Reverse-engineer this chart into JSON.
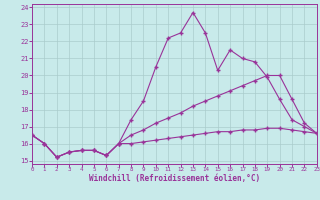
{
  "x": [
    0,
    1,
    2,
    3,
    4,
    5,
    6,
    7,
    8,
    9,
    10,
    11,
    12,
    13,
    14,
    15,
    16,
    17,
    18,
    19,
    20,
    21,
    22,
    23
  ],
  "line1": [
    16.5,
    16.0,
    15.2,
    15.5,
    15.6,
    15.6,
    15.3,
    16.0,
    17.4,
    18.5,
    20.5,
    22.2,
    22.5,
    23.7,
    22.5,
    20.3,
    21.5,
    21.0,
    20.8,
    19.9,
    18.6,
    17.4,
    17.0,
    16.6
  ],
  "line2": [
    16.5,
    16.0,
    15.2,
    15.5,
    15.6,
    15.6,
    15.3,
    16.0,
    16.5,
    16.8,
    17.2,
    17.5,
    17.8,
    18.2,
    18.5,
    18.8,
    19.1,
    19.4,
    19.7,
    20.0,
    20.0,
    18.6,
    17.2,
    16.6
  ],
  "line3": [
    16.5,
    16.0,
    15.2,
    15.5,
    15.6,
    15.6,
    15.3,
    16.0,
    16.0,
    16.1,
    16.2,
    16.3,
    16.4,
    16.5,
    16.6,
    16.7,
    16.7,
    16.8,
    16.8,
    16.9,
    16.9,
    16.8,
    16.7,
    16.6
  ],
  "line_color": "#993399",
  "bg_color": "#c8eaea",
  "grid_color": "#aacccc",
  "xlabel": "Windchill (Refroidissement éolien,°C)",
  "ylim": [
    14.8,
    24.2
  ],
  "xlim": [
    0,
    23
  ],
  "yticks": [
    15,
    16,
    17,
    18,
    19,
    20,
    21,
    22,
    23,
    24
  ],
  "xticks": [
    0,
    1,
    2,
    3,
    4,
    5,
    6,
    7,
    8,
    9,
    10,
    11,
    12,
    13,
    14,
    15,
    16,
    17,
    18,
    19,
    20,
    21,
    22,
    23
  ]
}
